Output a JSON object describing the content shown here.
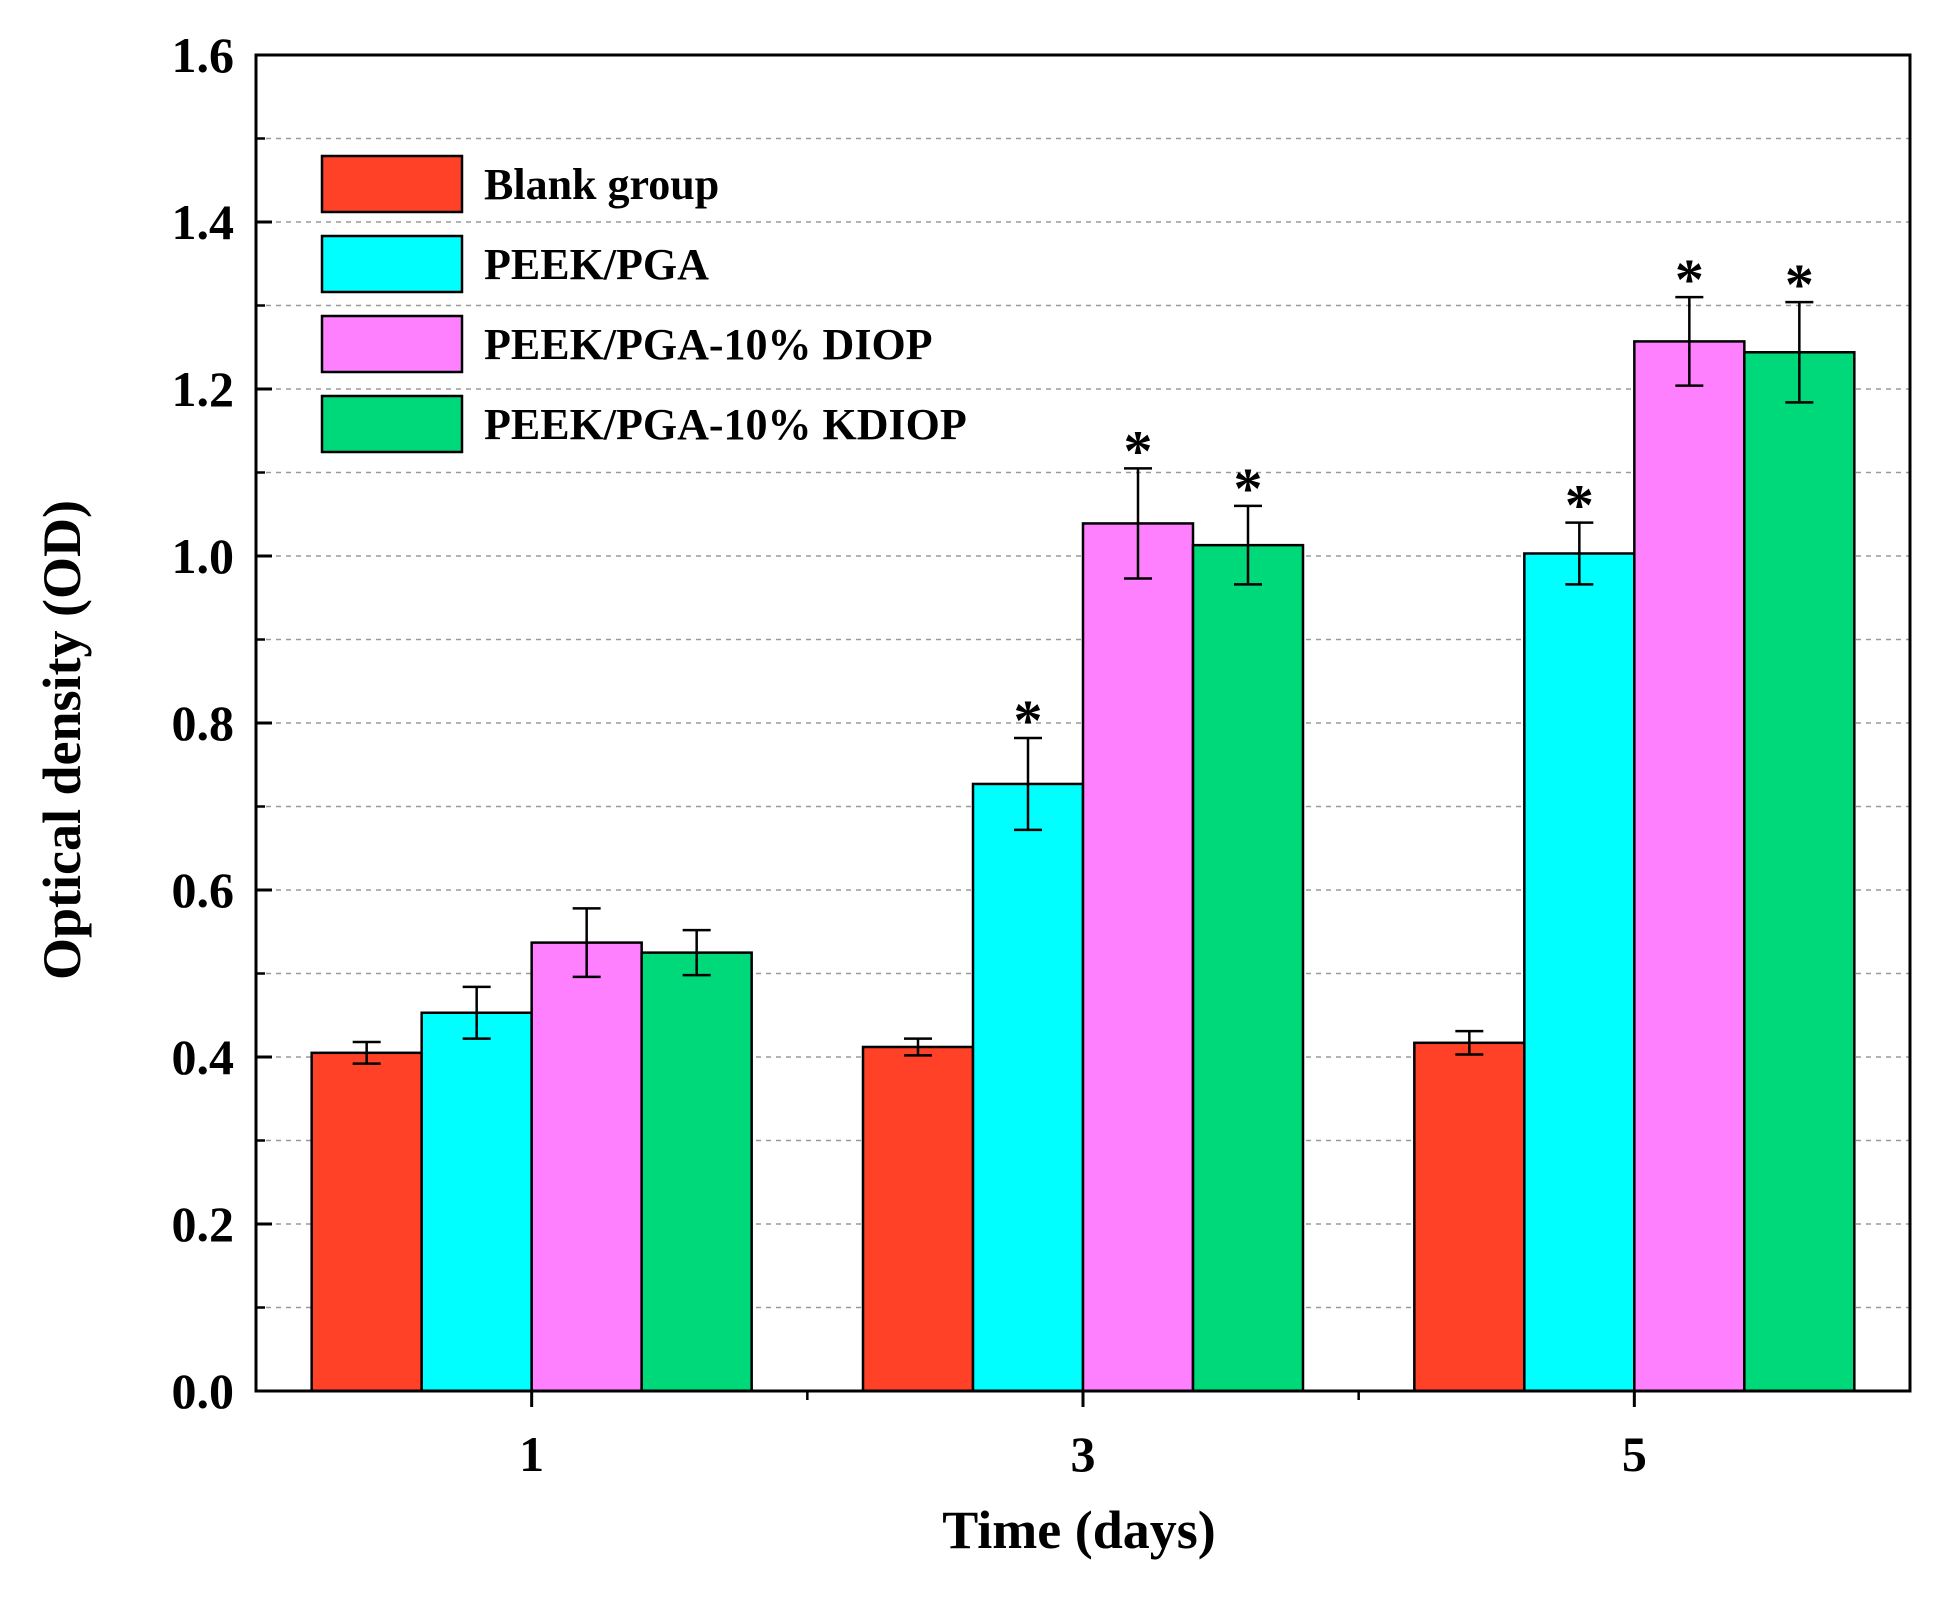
{
  "chart_data": {
    "type": "bar",
    "title": "",
    "xlabel": "Time (days)",
    "ylabel": "Optical density (OD)",
    "categories": [
      "1",
      "3",
      "5"
    ],
    "ylim": [
      0.0,
      1.6
    ],
    "yticks": [
      "0.0",
      "0.2",
      "0.4",
      "0.6",
      "0.8",
      "1.0",
      "1.2",
      "1.4",
      "1.6"
    ],
    "grid": true,
    "legend_position": "top-left",
    "significance_marker": "*",
    "series": [
      {
        "name": "Blank group",
        "color": "#ff4128",
        "values": [
          0.405,
          0.412,
          0.417
        ],
        "errors": [
          0.013,
          0.01,
          0.014
        ],
        "significant": [
          false,
          false,
          false
        ]
      },
      {
        "name": "PEEK/PGA",
        "color": "#00ffff",
        "values": [
          0.453,
          0.727,
          1.003
        ],
        "errors": [
          0.031,
          0.055,
          0.037
        ],
        "significant": [
          false,
          true,
          true
        ]
      },
      {
        "name": "PEEK/PGA-10% DIOP",
        "color": "#ff80ff",
        "values": [
          0.537,
          1.039,
          1.257
        ],
        "errors": [
          0.041,
          0.066,
          0.053
        ],
        "significant": [
          false,
          true,
          true
        ]
      },
      {
        "name": "PEEK/PGA-10% KDIOP",
        "color": "#00d97a",
        "values": [
          0.525,
          1.013,
          1.244
        ],
        "errors": [
          0.027,
          0.047,
          0.06
        ],
        "significant": [
          false,
          true,
          true
        ]
      }
    ]
  }
}
